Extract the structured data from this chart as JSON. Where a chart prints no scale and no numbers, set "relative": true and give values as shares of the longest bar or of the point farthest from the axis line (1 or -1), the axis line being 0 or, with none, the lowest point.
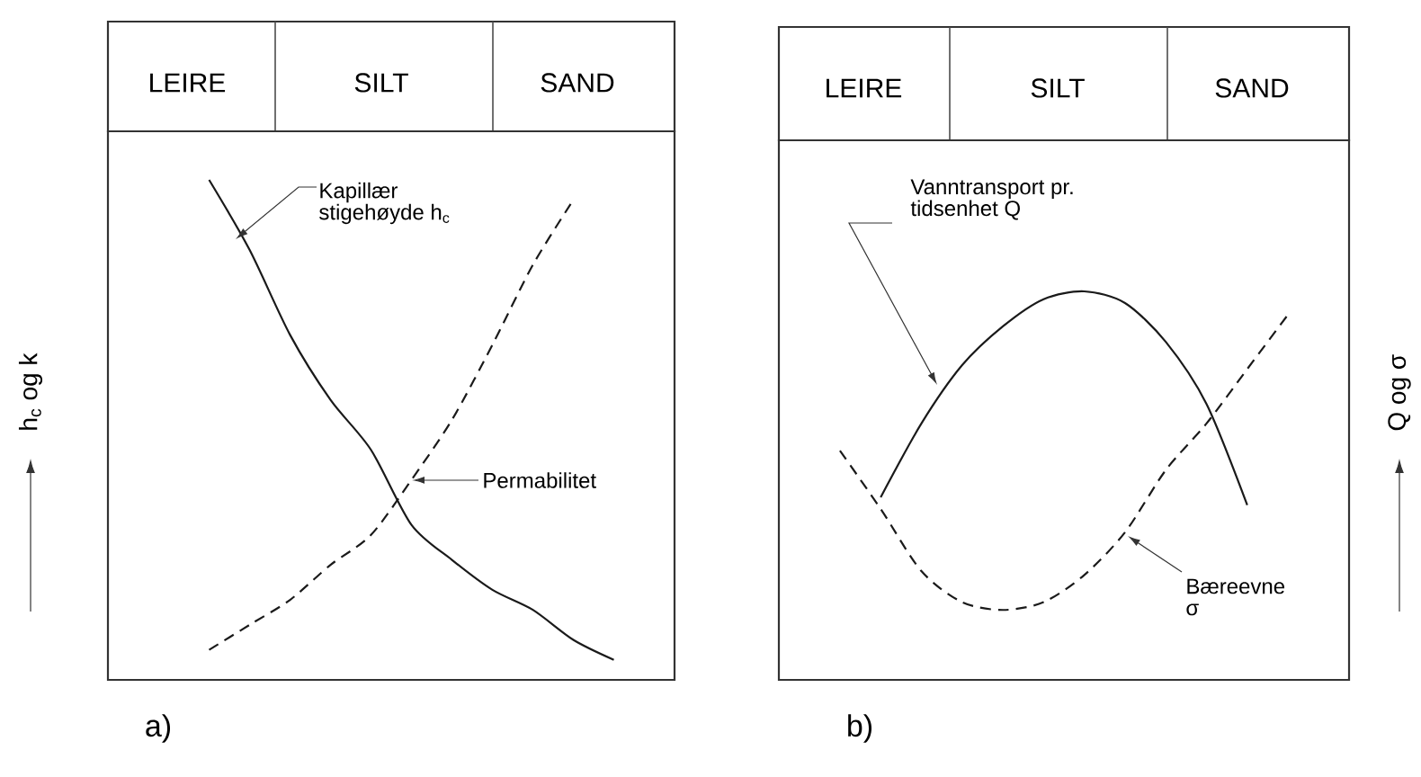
{
  "chart_data": [
    {
      "type": "line",
      "title": "a)",
      "ylabel": "h$_{c}$ og k",
      "relative": true,
      "categories": [
        null,
        null,
        null,
        null,
        null,
        null,
        null,
        null,
        null,
        null,
        null,
        null,
        null,
        null
      ],
      "annotations": [
        "LEIRE",
        "SILT",
        "SAND",
        "Kapillær stigehøyde h$_{c}$",
        "Permabilitet"
      ],
      "series": [
        {
          "color": "#1a1a1a",
          "line_style": "solid",
          "values": [
            null,
            null,
            1.0,
            0.86,
            0.69,
            0.56,
            0.46,
            0.31,
            0.24,
            0.18,
            0.14,
            0.08,
            0.04,
            null
          ]
        },
        {
          "color": "#1a1a1a",
          "line_style": "dashed",
          "values": [
            null,
            null,
            0.06,
            0.11,
            0.16,
            0.23,
            0.29,
            0.4,
            0.52,
            0.67,
            0.83,
            0.96,
            null,
            null
          ]
        }
      ]
    },
    {
      "type": "line",
      "title": "b)",
      "y2label": "Q og σ",
      "relative": true,
      "categories": [
        null,
        null,
        null,
        null,
        null,
        null,
        null,
        null,
        null,
        null,
        null,
        null,
        null,
        null
      ],
      "annotations": [
        "LEIRE",
        "SILT",
        "SAND",
        "Vanntransport pr. tidsenhet  Q",
        "Bæreevne σ"
      ],
      "series": [
        {
          "color": "#1a1a1a",
          "line_style": "solid",
          "values": [
            null,
            null,
            0.47,
            0.66,
            0.81,
            0.91,
            0.98,
            1.0,
            0.97,
            0.87,
            0.71,
            0.45,
            null,
            null
          ]
        },
        {
          "color": "#1a1a1a",
          "line_style": "dashed",
          "values": [
            null,
            0.59,
            0.44,
            0.28,
            0.2,
            0.18,
            0.2,
            0.27,
            0.38,
            0.54,
            0.66,
            0.8,
            0.94,
            null
          ]
        }
      ]
    }
  ]
}
